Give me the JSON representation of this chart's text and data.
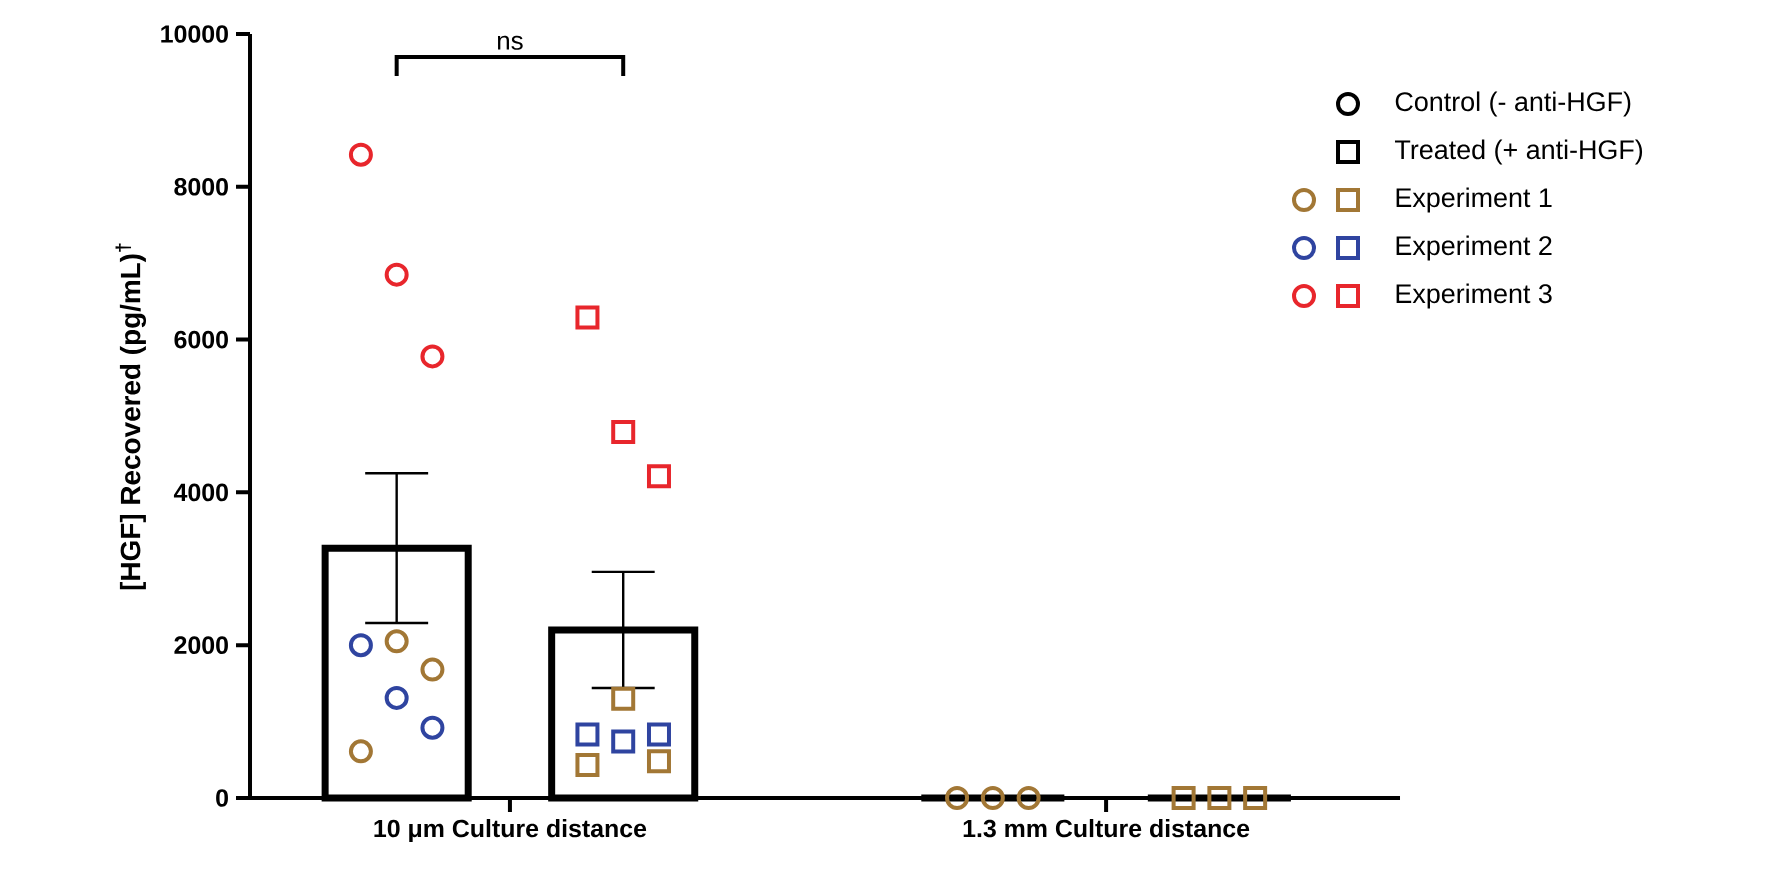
{
  "chart_data": {
    "type": "bar",
    "ylabel": "[HGF] Recovered (pg/mL)$^{†}$",
    "categories": [
      "10 μm Culture distance",
      "1.3 mm Culture distance"
    ],
    "ylim": [
      0,
      10000
    ],
    "yticks": [
      0,
      2000,
      4000,
      6000,
      8000,
      10000
    ],
    "legend": "top right",
    "annotations": [
      "ns"
    ],
    "series": [
      {
        "name": "Control (- anti-HGF)",
        "color": "#000000",
        "marker": "circle",
        "values": [
          3270,
          0
        ],
        "errors": [
          980,
          null
        ]
      },
      {
        "name": "Treated (+ anti-HGF)",
        "color": "#000000",
        "marker": "square",
        "values": [
          2200,
          0
        ],
        "errors": [
          760,
          null
        ]
      },
      {
        "name": "Experiment 1",
        "type": "scatter",
        "color": "#a27735",
        "marker": "circle",
        "x": [
          "10 μm Culture distance",
          "10 μm Culture distance",
          "10 μm Culture distance",
          "1.3 mm Culture distance",
          "1.3 mm Culture distance",
          "1.3 mm Culture distance"
        ],
        "values": [
          610,
          2050,
          1680,
          0,
          0,
          0
        ]
      },
      {
        "type": "scatter",
        "color": "#a27735",
        "marker": "square",
        "x": [
          "10 μm Culture distance",
          "10 μm Culture distance",
          "10 μm Culture distance",
          "1.3 mm Culture distance",
          "1.3 mm Culture distance",
          "1.3 mm Culture distance"
        ],
        "values": [
          430,
          1300,
          480,
          0,
          0,
          0
        ]
      },
      {
        "name": "Experiment 2",
        "type": "scatter",
        "color": "#2f44a0",
        "marker": "circle",
        "x": [
          "10 μm Culture distance",
          "10 μm Culture distance",
          "10 μm Culture distance"
        ],
        "values": [
          2000,
          1310,
          920
        ]
      },
      {
        "type": "scatter",
        "color": "#2f44a0",
        "marker": "square",
        "x": [
          "10 μm Culture distance",
          "10 μm Culture distance",
          "10 μm Culture distance"
        ],
        "values": [
          830,
          740,
          830
        ]
      },
      {
        "name": "Experiment 3",
        "type": "scatter",
        "color": "#e8262c",
        "marker": "circle",
        "x": [
          "10 μm Culture distance",
          "10 μm Culture distance",
          "10 μm Culture distance"
        ],
        "values": [
          8420,
          6850,
          5780
        ]
      },
      {
        "type": "scatter",
        "color": "#e8262c",
        "marker": "square",
        "x": [
          "10 μm Culture distance",
          "10 μm Culture distance",
          "10 μm Culture distance"
        ],
        "values": [
          6290,
          4790,
          4210
        ]
      }
    ]
  }
}
